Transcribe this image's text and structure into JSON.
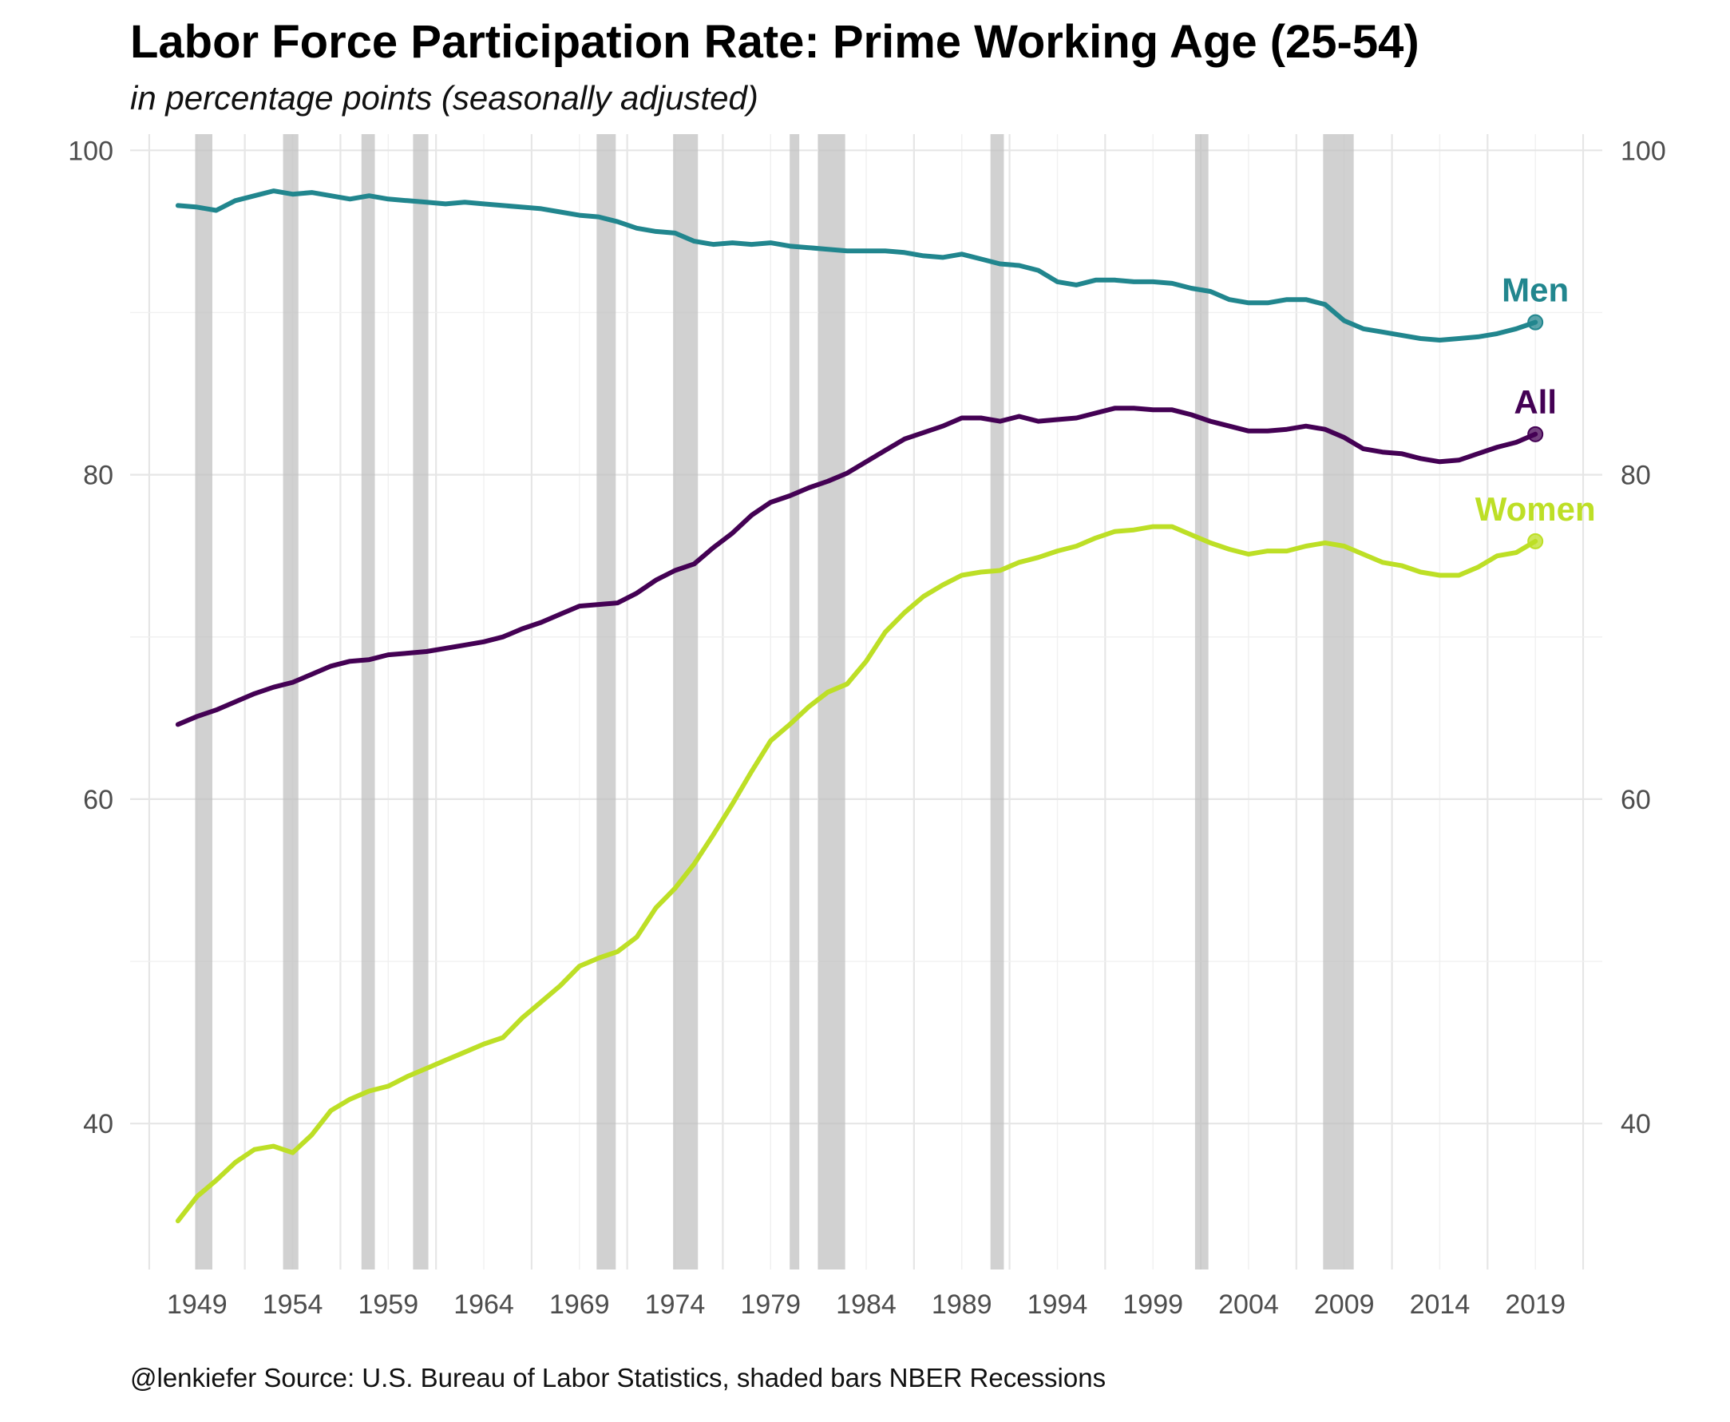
{
  "title": "Labor Force Participation Rate: Prime Working Age (25-54)",
  "subtitle": "in percentage points (seasonally adjusted)",
  "caption": "@lenkiefer Source: U.S. Bureau of Labor Statistics, shaded bars NBER Recessions",
  "chart_data": {
    "type": "line",
    "title": "Labor Force Participation Rate: Prime Working Age (25-54)",
    "subtitle": "in percentage points (seasonally adjusted)",
    "x_ticks": [
      "1949",
      "1954",
      "1959",
      "1964",
      "1969",
      "1974",
      "1979",
      "1984",
      "1989",
      "1994",
      "1999",
      "2004",
      "2009",
      "2014",
      "2019"
    ],
    "y_ticks_left": [
      "40",
      "60",
      "80",
      "100"
    ],
    "y_ticks_right": [
      "40",
      "60",
      "80",
      "100"
    ],
    "xlim": [
      1945.5,
      2022.5
    ],
    "ylim": [
      31,
      101
    ],
    "grid": true,
    "recessions": [
      [
        1948.9,
        1949.8
      ],
      [
        1953.5,
        1954.3
      ],
      [
        1957.6,
        1958.3
      ],
      [
        1960.3,
        1961.1
      ],
      [
        1969.9,
        1970.9
      ],
      [
        1973.9,
        1975.2
      ],
      [
        1980.0,
        1980.5
      ],
      [
        1981.5,
        1982.9
      ],
      [
        1990.5,
        1991.2
      ],
      [
        2001.2,
        2001.9
      ],
      [
        2007.9,
        2009.5
      ]
    ],
    "series": [
      {
        "name": "Men",
        "color": "#21868e",
        "x": [
          1948.0,
          1949.0,
          1950.0,
          1951.0,
          1952.0,
          1953.0,
          1954.0,
          1955.0,
          1956.0,
          1957.0,
          1958.0,
          1959.0,
          1960.0,
          1961.0,
          1962.0,
          1963.0,
          1964.0,
          1965.0,
          1966.0,
          1967.0,
          1968.0,
          1969.0,
          1970.0,
          1971.0,
          1972.0,
          1973.0,
          1974.0,
          1975.0,
          1976.0,
          1977.0,
          1978.0,
          1979.0,
          1980.0,
          1981.0,
          1982.0,
          1983.0,
          1984.0,
          1985.0,
          1986.0,
          1987.0,
          1988.0,
          1989.0,
          1990.0,
          1991.0,
          1992.0,
          1993.0,
          1994.0,
          1995.0,
          1996.0,
          1997.0,
          1998.0,
          1999.0,
          2000.0,
          2001.0,
          2002.0,
          2003.0,
          2004.0,
          2005.0,
          2006.0,
          2007.0,
          2008.0,
          2009.0,
          2010.0,
          2011.0,
          2012.0,
          2013.0,
          2014.0,
          2015.0,
          2016.0,
          2017.0,
          2018.0,
          2019.0
        ],
        "values": [
          96.6,
          96.5,
          96.3,
          96.9,
          97.2,
          97.5,
          97.3,
          97.4,
          97.2,
          97.0,
          97.2,
          97.0,
          96.9,
          96.8,
          96.7,
          96.8,
          96.7,
          96.6,
          96.5,
          96.4,
          96.2,
          96.0,
          95.9,
          95.6,
          95.2,
          95.0,
          94.9,
          94.4,
          94.2,
          94.3,
          94.2,
          94.3,
          94.1,
          94.0,
          93.9,
          93.8,
          93.8,
          93.8,
          93.7,
          93.5,
          93.4,
          93.6,
          93.3,
          93.0,
          92.9,
          92.6,
          91.9,
          91.7,
          92.0,
          92.0,
          91.9,
          91.9,
          91.8,
          91.5,
          91.3,
          90.8,
          90.6,
          90.6,
          90.8,
          90.8,
          90.5,
          89.5,
          89.0,
          88.8,
          88.6,
          88.4,
          88.3,
          88.4,
          88.5,
          88.7,
          89.0,
          89.4
        ]
      },
      {
        "name": "All",
        "color": "#440154",
        "x": [
          1948.0,
          1949.0,
          1950.0,
          1951.0,
          1952.0,
          1953.0,
          1954.0,
          1955.0,
          1956.0,
          1957.0,
          1958.0,
          1959.0,
          1960.0,
          1961.0,
          1962.0,
          1963.0,
          1964.0,
          1965.0,
          1966.0,
          1967.0,
          1968.0,
          1969.0,
          1970.0,
          1971.0,
          1972.0,
          1973.0,
          1974.0,
          1975.0,
          1976.0,
          1977.0,
          1978.0,
          1979.0,
          1980.0,
          1981.0,
          1982.0,
          1983.0,
          1984.0,
          1985.0,
          1986.0,
          1987.0,
          1988.0,
          1989.0,
          1990.0,
          1991.0,
          1992.0,
          1993.0,
          1994.0,
          1995.0,
          1996.0,
          1997.0,
          1998.0,
          1999.0,
          2000.0,
          2001.0,
          2002.0,
          2003.0,
          2004.0,
          2005.0,
          2006.0,
          2007.0,
          2008.0,
          2009.0,
          2010.0,
          2011.0,
          2012.0,
          2013.0,
          2014.0,
          2015.0,
          2016.0,
          2017.0,
          2018.0,
          2019.0
        ],
        "values": [
          64.6,
          65.1,
          65.5,
          66.0,
          66.5,
          66.9,
          67.2,
          67.7,
          68.2,
          68.5,
          68.6,
          68.9,
          69.0,
          69.1,
          69.3,
          69.5,
          69.7,
          70.0,
          70.5,
          70.9,
          71.4,
          71.9,
          72.0,
          72.1,
          72.7,
          73.5,
          74.1,
          74.5,
          75.5,
          76.4,
          77.5,
          78.3,
          78.7,
          79.2,
          79.6,
          80.1,
          80.8,
          81.5,
          82.2,
          82.6,
          83.0,
          83.5,
          83.5,
          83.3,
          83.6,
          83.3,
          83.4,
          83.5,
          83.8,
          84.1,
          84.1,
          84.0,
          84.0,
          83.7,
          83.3,
          83.0,
          82.7,
          82.7,
          82.8,
          83.0,
          82.8,
          82.3,
          81.6,
          81.4,
          81.3,
          81.0,
          80.8,
          80.9,
          81.3,
          81.7,
          82.0,
          82.5
        ]
      },
      {
        "name": "Women",
        "color": "#bddf26",
        "x": [
          1948.0,
          1949.0,
          1950.0,
          1951.0,
          1952.0,
          1953.0,
          1954.0,
          1955.0,
          1956.0,
          1957.0,
          1958.0,
          1959.0,
          1960.0,
          1961.0,
          1962.0,
          1963.0,
          1964.0,
          1965.0,
          1966.0,
          1967.0,
          1968.0,
          1969.0,
          1970.0,
          1971.0,
          1972.0,
          1973.0,
          1974.0,
          1975.0,
          1976.0,
          1977.0,
          1978.0,
          1979.0,
          1980.0,
          1981.0,
          1982.0,
          1983.0,
          1984.0,
          1985.0,
          1986.0,
          1987.0,
          1988.0,
          1989.0,
          1990.0,
          1991.0,
          1992.0,
          1993.0,
          1994.0,
          1995.0,
          1996.0,
          1997.0,
          1998.0,
          1999.0,
          2000.0,
          2001.0,
          2002.0,
          2003.0,
          2004.0,
          2005.0,
          2006.0,
          2007.0,
          2008.0,
          2009.0,
          2010.0,
          2011.0,
          2012.0,
          2013.0,
          2014.0,
          2015.0,
          2016.0,
          2017.0,
          2018.0,
          2019.0
        ],
        "values": [
          34.0,
          35.5,
          36.5,
          37.6,
          38.4,
          38.6,
          38.2,
          39.3,
          40.8,
          41.5,
          42.0,
          42.3,
          42.9,
          43.4,
          43.9,
          44.4,
          44.9,
          45.3,
          46.5,
          47.5,
          48.5,
          49.7,
          50.2,
          50.6,
          51.5,
          53.3,
          54.5,
          56.0,
          57.8,
          59.7,
          61.7,
          63.6,
          64.6,
          65.7,
          66.6,
          67.1,
          68.5,
          70.3,
          71.5,
          72.5,
          73.2,
          73.8,
          74.0,
          74.1,
          74.6,
          74.9,
          75.3,
          75.6,
          76.1,
          76.5,
          76.6,
          76.8,
          76.8,
          76.3,
          75.8,
          75.4,
          75.1,
          75.3,
          75.3,
          75.6,
          75.8,
          75.6,
          75.1,
          74.6,
          74.4,
          74.0,
          73.8,
          73.8,
          74.3,
          75.0,
          75.2,
          75.9
        ]
      }
    ]
  }
}
